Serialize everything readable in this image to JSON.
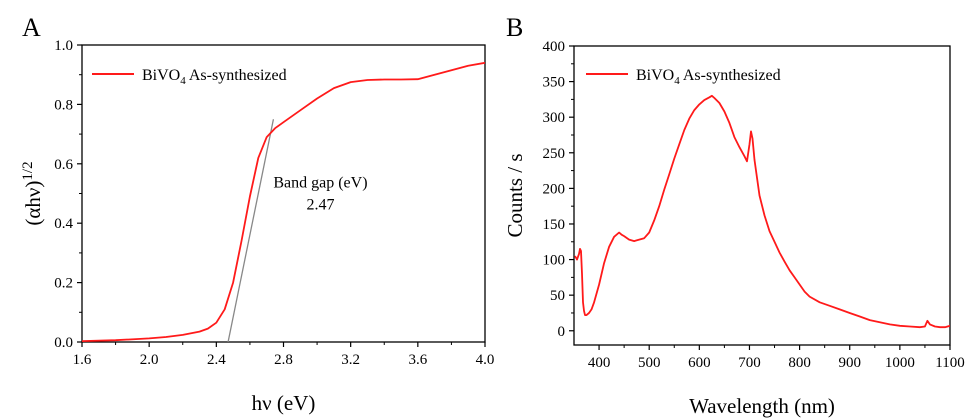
{
  "chart_data": [
    {
      "panel_label": "A",
      "type": "line",
      "xlabel": "hν (eV)",
      "ylabel": "(αhν)",
      "ylabel_superscript": "1/2",
      "xlim": [
        1.6,
        4.0
      ],
      "ylim": [
        0.0,
        1.0
      ],
      "xticks": [
        "1.6",
        "2.0",
        "2.4",
        "2.8",
        "3.2",
        "3.6",
        "4.0"
      ],
      "yticks": [
        "0.0",
        "0.2",
        "0.4",
        "0.6",
        "0.8",
        "1.0"
      ],
      "grid": false,
      "legend": {
        "position": "top-left",
        "label": "BiVO",
        "subscript": "4",
        "label_suffix": " As-synthesized"
      },
      "series": [
        {
          "name": "BiVO4 As-synthesized",
          "color": "#ff1a1a",
          "x": [
            1.6,
            1.8,
            2.0,
            2.1,
            2.2,
            2.3,
            2.35,
            2.4,
            2.45,
            2.5,
            2.55,
            2.6,
            2.65,
            2.7,
            2.75,
            2.8,
            2.9,
            3.0,
            3.1,
            3.2,
            3.3,
            3.4,
            3.5,
            3.6,
            3.7,
            3.8,
            3.9,
            4.0
          ],
          "y": [
            0.003,
            0.006,
            0.012,
            0.017,
            0.024,
            0.035,
            0.045,
            0.065,
            0.11,
            0.2,
            0.34,
            0.49,
            0.62,
            0.69,
            0.72,
            0.74,
            0.78,
            0.82,
            0.855,
            0.875,
            0.882,
            0.884,
            0.884,
            0.885,
            0.9,
            0.915,
            0.93,
            0.94
          ]
        }
      ],
      "tangent_line": {
        "color": "#888888",
        "x": [
          2.47,
          2.74
        ],
        "y": [
          0.0,
          0.75
        ]
      },
      "annotation": {
        "line1": "Band gap (eV)",
        "line2": "2.47",
        "x": 3.02,
        "y": 0.52
      }
    },
    {
      "panel_label": "B",
      "type": "line",
      "xlabel": "Wavelength (nm)",
      "ylabel": "Counts / s",
      "xlim": [
        350,
        1100
      ],
      "ylim": [
        -20,
        400
      ],
      "xticks": [
        "400",
        "500",
        "600",
        "700",
        "800",
        "900",
        "1000",
        "1100"
      ],
      "yticks": [
        "0",
        "50",
        "100",
        "150",
        "200",
        "250",
        "300",
        "350",
        "400"
      ],
      "grid": false,
      "legend": {
        "position": "top-left",
        "label": "BiVO",
        "subscript": "4",
        "label_suffix": " As-synthesized"
      },
      "series": [
        {
          "name": "BiVO4 As-synthesized",
          "color": "#ff1a1a",
          "x": [
            352,
            356,
            360,
            362,
            364,
            366,
            368,
            370,
            372,
            375,
            380,
            385,
            390,
            400,
            410,
            420,
            430,
            440,
            445,
            450,
            460,
            470,
            480,
            490,
            500,
            510,
            520,
            530,
            540,
            550,
            560,
            570,
            580,
            590,
            600,
            610,
            620,
            625,
            630,
            640,
            650,
            660,
            670,
            680,
            690,
            695,
            700,
            703,
            706,
            710,
            715,
            720,
            730,
            740,
            750,
            760,
            770,
            780,
            790,
            800,
            810,
            820,
            840,
            860,
            880,
            900,
            920,
            940,
            960,
            980,
            1000,
            1020,
            1040,
            1050,
            1055,
            1060,
            1070,
            1080,
            1090,
            1100
          ],
          "y": [
            105,
            100,
            108,
            115,
            112,
            80,
            40,
            28,
            22,
            22,
            25,
            30,
            40,
            65,
            95,
            118,
            132,
            138,
            135,
            133,
            128,
            126,
            128,
            130,
            138,
            155,
            175,
            198,
            220,
            242,
            262,
            282,
            298,
            310,
            318,
            324,
            328,
            330,
            327,
            320,
            308,
            292,
            272,
            258,
            245,
            238,
            262,
            280,
            270,
            240,
            215,
            190,
            162,
            140,
            125,
            110,
            97,
            85,
            75,
            65,
            55,
            48,
            40,
            35,
            30,
            25,
            20,
            15,
            12,
            9,
            7,
            6,
            5,
            6,
            14,
            9,
            6,
            5,
            5,
            7
          ]
        }
      ]
    }
  ]
}
